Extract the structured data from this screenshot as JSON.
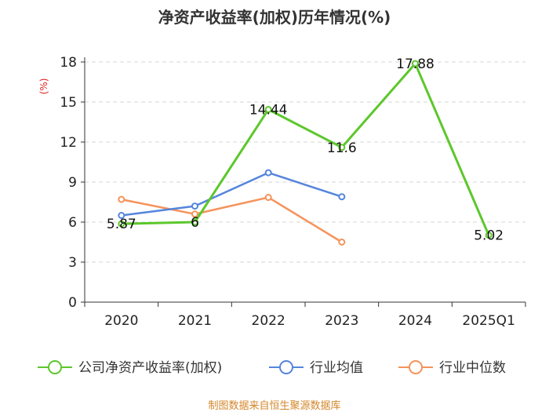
{
  "title": "净资产收益率(加权)历年情况(%)",
  "footer": "制图数据来自恒生聚源数据库",
  "colors": {
    "series0": "#5cc72c",
    "series1": "#5585dc",
    "series2": "#f5935b",
    "ylabel": "#e02020"
  },
  "chart_data": {
    "type": "line",
    "categories": [
      "2020",
      "2021",
      "2022",
      "2023",
      "2024",
      "2025Q1"
    ],
    "ylabel": "(%)",
    "ylim": [
      0,
      18
    ],
    "yticks": [
      0,
      3,
      6,
      9,
      12,
      15,
      18
    ],
    "grid": true,
    "legend_position": "bottom",
    "series": [
      {
        "name": "公司净资产收益率(加权)",
        "values": [
          5.87,
          6,
          14.44,
          11.6,
          17.88,
          5.02
        ],
        "labels": [
          "5.87",
          "6",
          "14.44",
          "11.6",
          "17.88",
          "5.02"
        ]
      },
      {
        "name": "行业均值",
        "values": [
          6.5,
          7.2,
          9.7,
          7.9,
          null,
          null
        ]
      },
      {
        "name": "行业中位数",
        "values": [
          7.7,
          6.6,
          7.85,
          4.5,
          null,
          null
        ]
      }
    ]
  }
}
